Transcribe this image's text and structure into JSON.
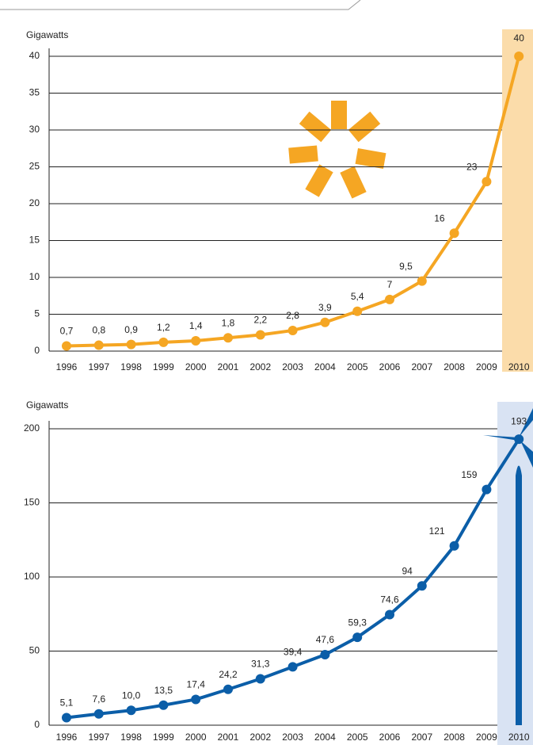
{
  "chart_data": [
    {
      "type": "line",
      "ylabel": "Gigawatts",
      "categories": [
        "1996",
        "1997",
        "1998",
        "1999",
        "2000",
        "2001",
        "2002",
        "2003",
        "2004",
        "2005",
        "2006",
        "2007",
        "2008",
        "2009",
        "2010"
      ],
      "values": [
        0.7,
        0.8,
        0.9,
        1.2,
        1.4,
        1.8,
        2.2,
        2.8,
        3.9,
        5.4,
        7,
        9.5,
        16,
        23,
        40
      ],
      "value_labels": [
        "0,7",
        "0,8",
        "0,9",
        "1,2",
        "1,4",
        "1,8",
        "2,2",
        "2,8",
        "3,9",
        "5,4",
        "7",
        "9,5",
        "16",
        "23",
        "40"
      ],
      "color": "#f5a623",
      "highlight_color": "#fbdcaa",
      "ylim": [
        0,
        40
      ],
      "yticks": [
        0,
        5,
        10,
        15,
        20,
        25,
        30,
        35,
        40
      ],
      "grid": true
    },
    {
      "type": "line",
      "ylabel": "Gigawatts",
      "categories": [
        "1996",
        "1997",
        "1998",
        "1999",
        "2000",
        "2001",
        "2002",
        "2003",
        "2004",
        "2005",
        "2006",
        "2007",
        "2008",
        "2009",
        "2010"
      ],
      "values": [
        5.1,
        7.6,
        10.0,
        13.5,
        17.4,
        24.2,
        31.3,
        39.4,
        47.6,
        59.3,
        74.6,
        94,
        121,
        159,
        193
      ],
      "value_labels": [
        "5,1",
        "7,6",
        "10,0",
        "13,5",
        "17,4",
        "24,2",
        "31,3",
        "39,4",
        "47,6",
        "59,3",
        "74,6",
        "94",
        "121",
        "159",
        "193"
      ],
      "color": "#0b5ea8",
      "highlight_color": "#d9e3f3",
      "ylim": [
        0,
        200
      ],
      "yticks": [
        0,
        50,
        100,
        150,
        200
      ],
      "grid": true
    }
  ]
}
